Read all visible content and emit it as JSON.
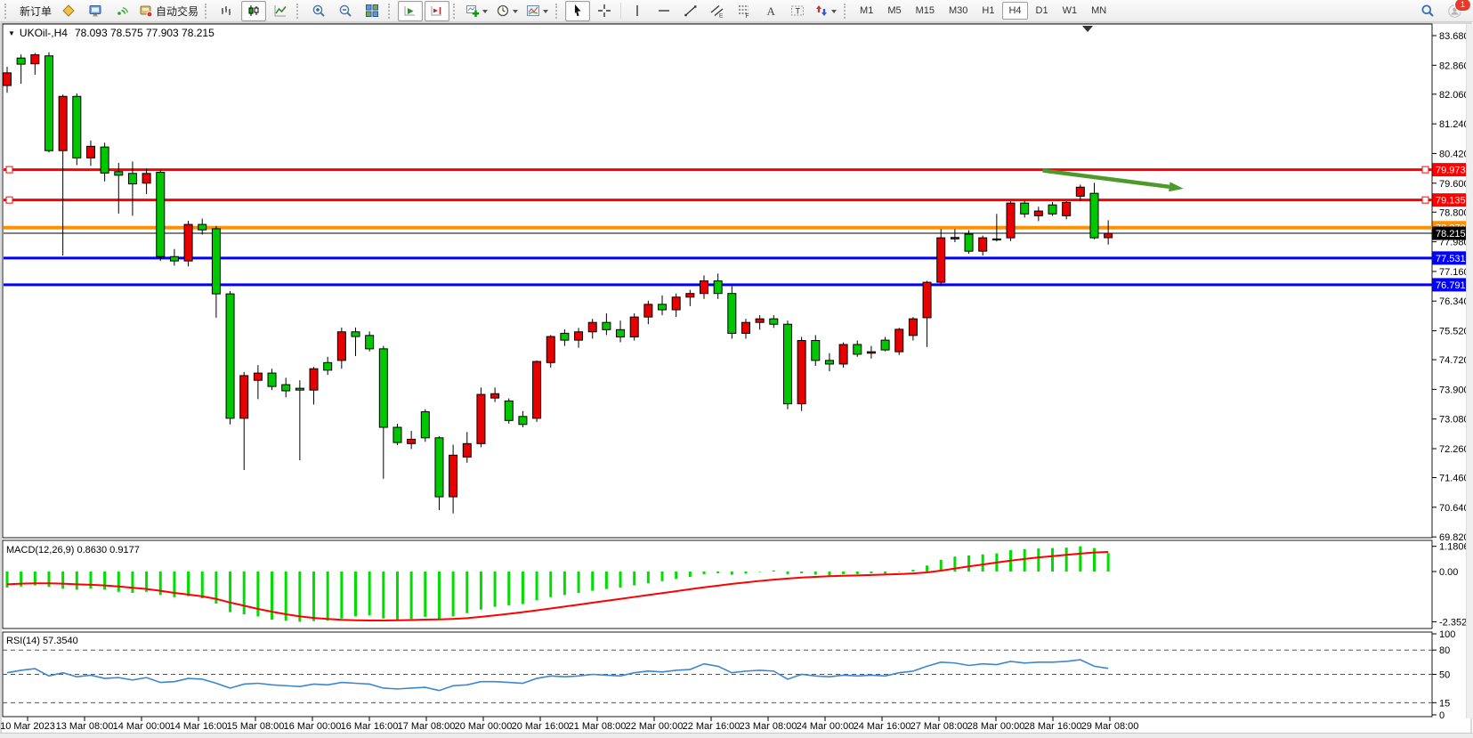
{
  "toolbar": {
    "new_order_label": "新订单",
    "autotrading_label": "自动交易",
    "timeframes": [
      "M1",
      "M5",
      "M15",
      "M30",
      "H1",
      "H4",
      "D1",
      "W1",
      "MN"
    ],
    "active_timeframe": "H4",
    "notification_badge": "1"
  },
  "chart": {
    "title_symbol": "UKOil-,H4",
    "title_ohlc": "78.093 78.575 77.903 78.215",
    "macd_label": "MACD(12,26,9) 0.8630 0.9177",
    "rsi_label": "RSI(14) 57.3540"
  },
  "chart_data": {
    "type": "candlestick",
    "symbol": "UKOil-,H4",
    "timeframe": "H4",
    "last_ohlc": {
      "open": 78.093,
      "high": 78.575,
      "low": 77.903,
      "close": 78.215
    },
    "colors": {
      "rising_candle": "#E80000",
      "falling_candle": "#00C800",
      "candle_outline": "#000000",
      "macd_histogram": "#00DD00",
      "macd_signal": "#FF0000",
      "rsi_line": "#3C86D2",
      "arrow": "#4D9A2B",
      "line_red": "#FF0000",
      "line_orange": "#FF9100",
      "line_blue": "#0000FF",
      "line_black": "#000000"
    },
    "price_axis_ticks": [
      "83.680",
      "82.860",
      "82.060",
      "81.240",
      "80.420",
      "79.600",
      "78.800",
      "77.980",
      "77.160",
      "76.340",
      "75.520",
      "74.720",
      "73.900",
      "73.080",
      "72.260",
      "71.460",
      "70.640",
      "69.820"
    ],
    "date_axis_ticks": [
      "10 Mar 2023",
      "13 Mar 08:00",
      "14 Mar 00:00",
      "14 Mar 16:00",
      "15 Mar 08:00",
      "16 Mar 00:00",
      "16 Mar 16:00",
      "17 Mar 08:00",
      "20 Mar 00:00",
      "20 Mar 16:00",
      "21 Mar 08:00",
      "22 Mar 00:00",
      "22 Mar 16:00",
      "23 Mar 08:00",
      "24 Mar 00:00",
      "24 Mar 16:00",
      "27 Mar 08:00",
      "28 Mar 00:00",
      "28 Mar 16:00",
      "29 Mar 08:00"
    ],
    "candles": [
      [
        82.3,
        82.82,
        82.1,
        82.65
      ],
      [
        83.06,
        83.16,
        82.35,
        82.89
      ],
      [
        82.9,
        83.2,
        82.6,
        83.15
      ],
      [
        83.12,
        83.22,
        80.45,
        80.5
      ],
      [
        80.5,
        82.05,
        77.6,
        82.0
      ],
      [
        82.0,
        82.08,
        80.1,
        80.3
      ],
      [
        80.3,
        80.78,
        80.08,
        80.62
      ],
      [
        80.6,
        80.72,
        79.65,
        79.88
      ],
      [
        79.92,
        80.16,
        78.76,
        79.82
      ],
      [
        79.87,
        80.2,
        78.7,
        79.58
      ],
      [
        79.6,
        80.0,
        79.3,
        79.87
      ],
      [
        79.9,
        79.96,
        77.45,
        77.57
      ],
      [
        77.57,
        77.78,
        77.32,
        77.45
      ],
      [
        77.45,
        78.56,
        77.3,
        78.46
      ],
      [
        78.46,
        78.62,
        78.18,
        78.31
      ],
      [
        78.34,
        78.42,
        75.88,
        76.54
      ],
      [
        76.54,
        76.62,
        72.93,
        73.1
      ],
      [
        73.1,
        74.38,
        71.67,
        74.28
      ],
      [
        74.15,
        74.57,
        73.63,
        74.35
      ],
      [
        74.35,
        74.47,
        73.88,
        73.98
      ],
      [
        74.03,
        74.22,
        73.68,
        73.86
      ],
      [
        73.93,
        74.15,
        71.94,
        73.88
      ],
      [
        73.88,
        74.52,
        73.48,
        74.47
      ],
      [
        74.64,
        74.8,
        74.3,
        74.43
      ],
      [
        74.7,
        75.61,
        74.47,
        75.49
      ],
      [
        75.49,
        75.61,
        74.82,
        75.36
      ],
      [
        75.39,
        75.5,
        74.95,
        75.02
      ],
      [
        75.02,
        75.1,
        71.43,
        72.85
      ],
      [
        72.85,
        72.95,
        72.36,
        72.43
      ],
      [
        72.4,
        72.75,
        72.25,
        72.52
      ],
      [
        73.28,
        73.35,
        72.45,
        72.56
      ],
      [
        72.56,
        72.6,
        70.56,
        70.93
      ],
      [
        70.93,
        72.37,
        70.47,
        72.08
      ],
      [
        72.03,
        72.72,
        71.87,
        72.4
      ],
      [
        72.4,
        73.95,
        72.3,
        73.76
      ],
      [
        73.66,
        73.95,
        73.55,
        73.78
      ],
      [
        73.58,
        73.65,
        72.95,
        73.04
      ],
      [
        73.15,
        73.3,
        72.85,
        72.93
      ],
      [
        73.1,
        74.7,
        73.0,
        74.67
      ],
      [
        74.64,
        75.4,
        74.5,
        75.36
      ],
      [
        75.45,
        75.56,
        75.1,
        75.26
      ],
      [
        75.26,
        75.6,
        75.05,
        75.49
      ],
      [
        75.49,
        75.85,
        75.3,
        75.75
      ],
      [
        75.75,
        76.0,
        75.4,
        75.55
      ],
      [
        75.55,
        75.8,
        75.2,
        75.35
      ],
      [
        75.35,
        76.0,
        75.25,
        75.9
      ],
      [
        75.9,
        76.35,
        75.7,
        76.25
      ],
      [
        76.25,
        76.5,
        75.95,
        76.1
      ],
      [
        76.1,
        76.55,
        75.9,
        76.45
      ],
      [
        76.45,
        76.65,
        76.2,
        76.55
      ],
      [
        76.55,
        77.05,
        76.4,
        76.9
      ],
      [
        76.9,
        77.1,
        76.4,
        76.55
      ],
      [
        76.55,
        76.75,
        75.3,
        75.45
      ],
      [
        75.45,
        75.85,
        75.3,
        75.75
      ],
      [
        75.75,
        75.95,
        75.55,
        75.85
      ],
      [
        75.85,
        75.95,
        75.6,
        75.7
      ],
      [
        75.7,
        75.8,
        73.35,
        73.5
      ],
      [
        73.5,
        75.35,
        73.3,
        75.25
      ],
      [
        75.25,
        75.4,
        74.55,
        74.7
      ],
      [
        74.7,
        74.9,
        74.4,
        74.6
      ],
      [
        74.6,
        75.2,
        74.5,
        75.14
      ],
      [
        75.14,
        75.25,
        74.8,
        74.87
      ],
      [
        74.9,
        75.1,
        74.75,
        74.94
      ],
      [
        75.26,
        75.35,
        74.95,
        74.99
      ],
      [
        74.94,
        75.6,
        74.85,
        75.56
      ],
      [
        75.39,
        75.9,
        75.25,
        75.85
      ],
      [
        75.88,
        76.9,
        75.07,
        76.86
      ],
      [
        76.86,
        78.33,
        76.75,
        78.09
      ],
      [
        78.06,
        78.33,
        77.97,
        78.1
      ],
      [
        78.19,
        78.3,
        77.65,
        77.72
      ],
      [
        77.72,
        78.15,
        77.6,
        78.09
      ],
      [
        78.06,
        78.75,
        77.99,
        78.03
      ],
      [
        78.09,
        79.1,
        78.0,
        79.05
      ],
      [
        79.05,
        79.12,
        78.65,
        78.75
      ],
      [
        78.7,
        78.95,
        78.55,
        78.83
      ],
      [
        79.0,
        79.08,
        78.7,
        78.75
      ],
      [
        78.7,
        79.1,
        78.6,
        79.07
      ],
      [
        79.24,
        79.56,
        79.1,
        79.49
      ],
      [
        79.32,
        79.61,
        78.05,
        78.09
      ],
      [
        78.093,
        78.575,
        77.903,
        78.215
      ]
    ],
    "horizontal_lines": [
      {
        "price": 79.973,
        "label": "79.973",
        "color": "#FF0000",
        "width": 3,
        "selected": true
      },
      {
        "price": 79.135,
        "label": "79.135",
        "color": "#FF0000",
        "width": 3,
        "selected": true
      },
      {
        "price": 78.37,
        "label": "78.370",
        "color": "#FF9100",
        "width": 4,
        "selected": false
      },
      {
        "price": 78.215,
        "label": "78.215",
        "color": "#000000",
        "width": 1,
        "selected": false,
        "current_price": true
      },
      {
        "price": 77.531,
        "label": "77.531",
        "color": "#0000FF",
        "width": 3,
        "selected": false
      },
      {
        "price": 76.791,
        "label": "76.791",
        "color": "#0000FF",
        "width": 3,
        "selected": false
      }
    ],
    "trend_arrow": {
      "from_bar": 74.3,
      "from_price": 79.95,
      "to_bar": 84.4,
      "to_price": 79.45
    },
    "indicators": {
      "macd": {
        "params": "12,26,9",
        "macd_value": 0.863,
        "signal_value": 0.9177,
        "axis_labels": [
          "1.1806",
          "0.00",
          "-2.3521"
        ],
        "axis_values": [
          1.1806,
          0.0,
          -2.3521
        ],
        "histogram": [
          -0.75,
          -0.7,
          -0.65,
          -0.72,
          -0.8,
          -0.85,
          -0.8,
          -0.85,
          -0.95,
          -1.0,
          -0.95,
          -1.1,
          -1.2,
          -1.15,
          -1.25,
          -1.5,
          -1.9,
          -2.0,
          -2.1,
          -2.25,
          -2.3,
          -2.3521,
          -2.32,
          -2.3,
          -2.2,
          -2.1,
          -2.05,
          -2.2,
          -2.28,
          -2.22,
          -2.12,
          -2.25,
          -2.1,
          -1.95,
          -1.78,
          -1.65,
          -1.58,
          -1.52,
          -1.35,
          -1.2,
          -1.1,
          -1.0,
          -0.9,
          -0.82,
          -0.75,
          -0.65,
          -0.55,
          -0.45,
          -0.35,
          -0.25,
          -0.12,
          -0.08,
          -0.15,
          -0.1,
          -0.02,
          0.05,
          -0.12,
          -0.08,
          -0.15,
          -0.18,
          -0.12,
          -0.12,
          -0.08,
          -0.1,
          -0.02,
          0.08,
          0.28,
          0.55,
          0.7,
          0.75,
          0.8,
          0.85,
          1.0,
          1.05,
          1.08,
          1.1,
          1.12,
          1.1806,
          1.1,
          0.863
        ],
        "signal_line": [
          -0.6,
          -0.57,
          -0.55,
          -0.55,
          -0.57,
          -0.6,
          -0.62,
          -0.65,
          -0.7,
          -0.76,
          -0.82,
          -0.9,
          -1.0,
          -1.08,
          -1.16,
          -1.28,
          -1.45,
          -1.6,
          -1.75,
          -1.88,
          -2.0,
          -2.1,
          -2.17,
          -2.22,
          -2.26,
          -2.28,
          -2.29,
          -2.29,
          -2.28,
          -2.27,
          -2.25,
          -2.24,
          -2.22,
          -2.18,
          -2.12,
          -2.05,
          -1.98,
          -1.9,
          -1.82,
          -1.73,
          -1.64,
          -1.55,
          -1.46,
          -1.37,
          -1.28,
          -1.19,
          -1.1,
          -1.01,
          -0.92,
          -0.83,
          -0.74,
          -0.66,
          -0.58,
          -0.51,
          -0.44,
          -0.38,
          -0.33,
          -0.28,
          -0.25,
          -0.22,
          -0.2,
          -0.18,
          -0.16,
          -0.14,
          -0.12,
          -0.09,
          -0.04,
          0.04,
          0.14,
          0.24,
          0.33,
          0.42,
          0.51,
          0.59,
          0.66,
          0.72,
          0.78,
          0.84,
          0.89,
          0.9177
        ]
      },
      "rsi": {
        "period": 14,
        "value": 57.354,
        "axis_labels": [
          "100",
          "80",
          "50",
          "15",
          "0"
        ],
        "axis_values": [
          100,
          80,
          50,
          15,
          0
        ],
        "dashed_levels": [
          80,
          50,
          15
        ],
        "line": [
          52,
          55,
          57,
          48,
          52,
          47,
          49,
          45,
          46,
          43,
          46,
          40,
          41,
          45,
          44,
          39,
          33,
          38,
          39,
          37,
          36,
          35,
          38,
          37,
          40,
          39,
          38,
          33,
          32,
          33,
          34,
          30,
          36,
          37,
          41,
          41,
          40,
          39,
          45,
          48,
          47,
          48,
          50,
          49,
          48,
          52,
          54,
          53,
          55,
          56,
          63,
          60,
          52,
          54,
          55,
          54,
          44,
          50,
          48,
          47,
          49,
          48,
          49,
          48,
          52,
          54,
          60,
          65,
          64,
          61,
          63,
          62,
          66,
          64,
          65,
          65,
          66,
          68,
          60,
          57.35
        ]
      }
    }
  }
}
